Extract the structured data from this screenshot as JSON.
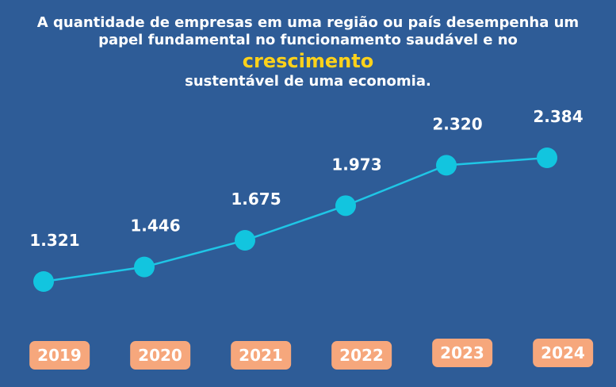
{
  "headline": {
    "line1": "A quantidade de empresas em uma região ou país desempenha um",
    "line2": "papel fundamental no funcionamento saudável e no",
    "highlight": "crescimento",
    "line3": "sustentável de uma economia."
  },
  "colors": {
    "background": "#2e5c97",
    "line": "#1fc6e6",
    "marker": "#12c5df",
    "highlight": "#ffd21a",
    "pill": "#f6a77c"
  },
  "chart_data": {
    "type": "line",
    "categories": [
      "2019",
      "2020",
      "2021",
      "2022",
      "2023",
      "2024"
    ],
    "values": [
      1321,
      1446,
      1675,
      1973,
      2320,
      2384
    ],
    "value_labels": [
      "1.321",
      "1.446",
      "1.675",
      "1.973",
      "2.320",
      "2.384"
    ],
    "title": "",
    "xlabel": "",
    "ylabel": "",
    "grid": false,
    "legend": "none"
  }
}
